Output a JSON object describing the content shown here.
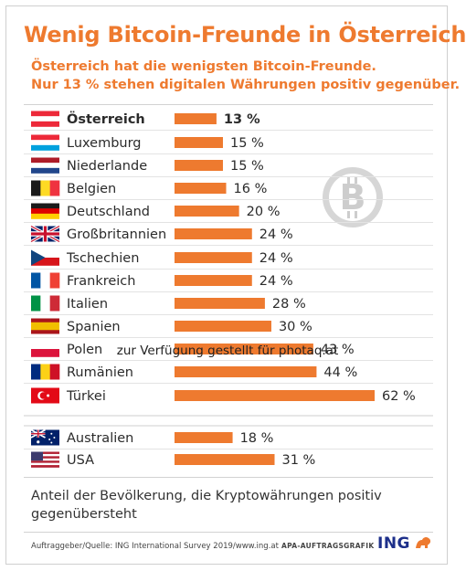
{
  "title": "Wenig Bitcoin-Freunde in Österreich",
  "subtitle": [
    "Österreich hat die wenigsten Bitcoin-Freunde.",
    "Nur 13 % stehen digitalen Währungen positiv gegenüber."
  ],
  "footnote": "Anteil der Bevölkerung, die Kryptowährungen positiv gegenübersteht",
  "source": "Auftraggeber/Quelle: ING International Survey 2019/www.ing.at",
  "agency": "APA-AUFTRAGSGRAFIK",
  "logo_text": "ING",
  "watermark": "zur Verfügung gestellt für photaq.at",
  "colors": {
    "accent": "#ee7a2f",
    "bar": "#ee7a2f",
    "text": "#333333",
    "logo": "#1d2f8a"
  },
  "icons": [
    "bitcoin-icon",
    "ing-lion-icon"
  ],
  "chart_data": {
    "type": "bar",
    "orientation": "horizontal",
    "value_suffix": " %",
    "xlim": [
      0,
      62
    ],
    "categories": [
      "Österreich",
      "Luxemburg",
      "Niederlande",
      "Belgien",
      "Deutschland",
      "Großbritannien",
      "Tschechien",
      "Frankreich",
      "Italien",
      "Spanien",
      "Polen",
      "Rumänien",
      "Türkei",
      "Australien",
      "USA"
    ],
    "values": [
      13,
      15,
      15,
      16,
      20,
      24,
      24,
      24,
      28,
      30,
      43,
      44,
      62,
      18,
      31
    ],
    "highlight": "Österreich",
    "groups": [
      {
        "categories": [
          "Österreich",
          "Luxemburg",
          "Niederlande",
          "Belgien",
          "Deutschland",
          "Großbritannien",
          "Tschechien",
          "Frankreich",
          "Italien",
          "Spanien",
          "Polen",
          "Rumänien",
          "Türkei"
        ]
      },
      {
        "categories": [
          "Australien",
          "USA"
        ]
      }
    ],
    "flags": [
      "at",
      "lu",
      "nl",
      "be",
      "de",
      "gb",
      "cz",
      "fr",
      "it",
      "es",
      "pl",
      "ro",
      "tr",
      "au",
      "us"
    ]
  }
}
